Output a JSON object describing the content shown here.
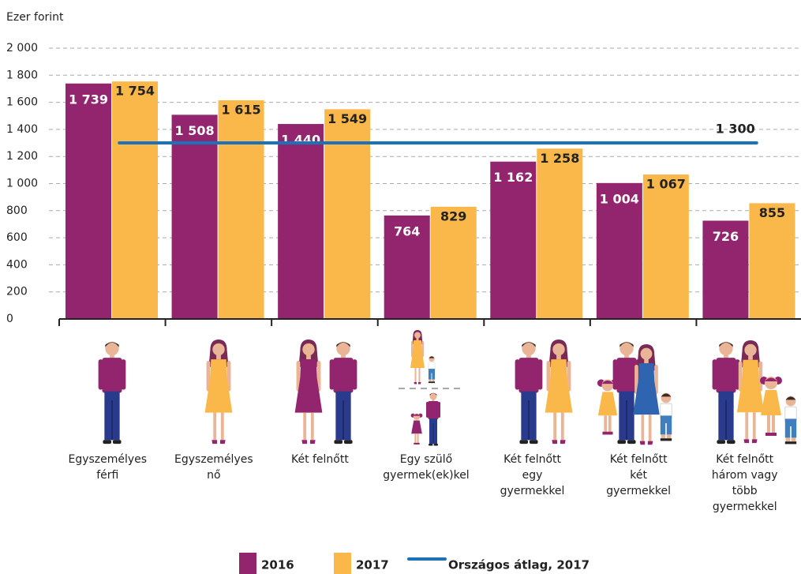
{
  "chart_data": {
    "type": "bar",
    "y_label": "Ezer forint",
    "categories": [
      "Egyszemélyes\nférfi",
      "Egyszemélyes\nnő",
      "Két felnőtt",
      "Egy szülő\ngyermek(ek)kel",
      "Két felnőtt\negy\ngyermekkel",
      "Két felnőtt\nkét\ngyermekkel",
      "Két felnőtt\nhárom vagy\ntöbb\ngyermekkel"
    ],
    "series": [
      {
        "name": "2016",
        "color": "#93246e",
        "values": [
          1739,
          1508,
          1440,
          764,
          1162,
          1004,
          726
        ],
        "value_labels": [
          "1 739",
          "1 508",
          "1 440",
          "764",
          "1 162",
          "1 004",
          "726"
        ]
      },
      {
        "name": "2017",
        "color": "#fbb84a",
        "values": [
          1754,
          1615,
          1549,
          829,
          1258,
          1067,
          855
        ],
        "value_labels": [
          "1 754",
          "1 615",
          "1 549",
          "829",
          "1 258",
          "1 067",
          "855"
        ]
      }
    ],
    "reference_line": {
      "name": "Országos átlag, 2017",
      "value": 1300,
      "label": "1 300",
      "color": "#1a73b8"
    },
    "ylim": [
      0,
      2000
    ],
    "yticks": [
      0,
      200,
      400,
      600,
      800,
      {
        "value": 1000,
        "label": "1 000"
      },
      {
        "value": 1200,
        "label": "1 200"
      },
      {
        "value": 1400,
        "label": "1 400"
      },
      {
        "value": 1600,
        "label": "1 600"
      },
      {
        "value": 1800,
        "label": "1 800"
      },
      {
        "value": 2000,
        "label": "2 000"
      }
    ],
    "grid": true
  }
}
